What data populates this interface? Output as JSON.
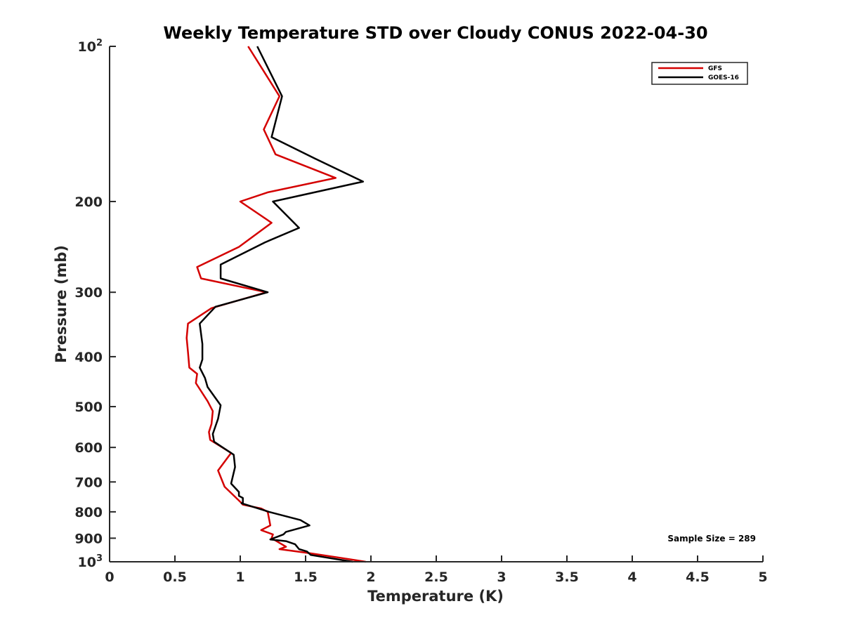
{
  "chart_data": {
    "type": "line",
    "title": "Weekly Temperature STD over Cloudy CONUS 2022-04-30",
    "xlabel": "Temperature (K)",
    "ylabel": "Pressure (mb)",
    "xlim": [
      0,
      5
    ],
    "ylim": [
      100,
      1000
    ],
    "y_scale": "log",
    "y_reversed": true,
    "grid": false,
    "legend_position": "top-right",
    "x_ticks": [
      "0",
      "0.5",
      "1",
      "1.5",
      "2",
      "2.5",
      "3",
      "3.5",
      "4",
      "4.5",
      "5"
    ],
    "y_ticks": [
      {
        "value": 100,
        "label": "10",
        "sup": "2"
      },
      {
        "value": 200,
        "label": "200",
        "sup": ""
      },
      {
        "value": 300,
        "label": "300",
        "sup": ""
      },
      {
        "value": 400,
        "label": "400",
        "sup": ""
      },
      {
        "value": 500,
        "label": "500",
        "sup": ""
      },
      {
        "value": 600,
        "label": "600",
        "sup": ""
      },
      {
        "value": 700,
        "label": "700",
        "sup": ""
      },
      {
        "value": 800,
        "label": "800",
        "sup": ""
      },
      {
        "value": 900,
        "label": "900",
        "sup": ""
      },
      {
        "value": 1000,
        "label": "10",
        "sup": "3"
      }
    ],
    "series": [
      {
        "name": "GFS",
        "color": "#d40000",
        "points": [
          [
            1.06,
            100
          ],
          [
            1.3,
            125
          ],
          [
            1.18,
            145
          ],
          [
            1.27,
            162
          ],
          [
            1.73,
            180
          ],
          [
            1.21,
            192
          ],
          [
            1.0,
            200
          ],
          [
            1.24,
            220
          ],
          [
            0.99,
            245
          ],
          [
            0.67,
            268
          ],
          [
            0.7,
            282
          ],
          [
            1.2,
            300
          ],
          [
            0.78,
            322
          ],
          [
            0.6,
            345
          ],
          [
            0.59,
            368
          ],
          [
            0.6,
            392
          ],
          [
            0.61,
            420
          ],
          [
            0.67,
            432
          ],
          [
            0.66,
            450
          ],
          [
            0.75,
            488
          ],
          [
            0.79,
            510
          ],
          [
            0.78,
            540
          ],
          [
            0.76,
            560
          ],
          [
            0.77,
            580
          ],
          [
            0.93,
            615
          ],
          [
            0.83,
            665
          ],
          [
            0.88,
            715
          ],
          [
            1.0,
            765
          ],
          [
            1.02,
            775
          ],
          [
            1.16,
            788
          ],
          [
            1.21,
            800
          ],
          [
            1.23,
            850
          ],
          [
            1.16,
            868
          ],
          [
            1.25,
            885
          ],
          [
            1.24,
            900
          ],
          [
            1.35,
            935
          ],
          [
            1.3,
            945
          ],
          [
            1.53,
            962
          ],
          [
            1.76,
            982
          ],
          [
            1.96,
            1000
          ]
        ]
      },
      {
        "name": "GOES-16",
        "color": "#000000",
        "points": [
          [
            1.13,
            100
          ],
          [
            1.32,
            125
          ],
          [
            1.24,
            150
          ],
          [
            1.57,
            165
          ],
          [
            1.94,
            183
          ],
          [
            1.25,
            200
          ],
          [
            1.45,
            225
          ],
          [
            1.19,
            240
          ],
          [
            0.85,
            265
          ],
          [
            0.85,
            282
          ],
          [
            1.21,
            300
          ],
          [
            0.81,
            320
          ],
          [
            0.69,
            345
          ],
          [
            0.71,
            378
          ],
          [
            0.71,
            405
          ],
          [
            0.69,
            420
          ],
          [
            0.73,
            440
          ],
          [
            0.75,
            458
          ],
          [
            0.85,
            497
          ],
          [
            0.83,
            528
          ],
          [
            0.79,
            565
          ],
          [
            0.8,
            585
          ],
          [
            0.95,
            620
          ],
          [
            0.96,
            655
          ],
          [
            0.93,
            705
          ],
          [
            0.99,
            732
          ],
          [
            0.99,
            745
          ],
          [
            1.02,
            752
          ],
          [
            1.02,
            768
          ],
          [
            1.01,
            770
          ],
          [
            1.22,
            800
          ],
          [
            1.46,
            830
          ],
          [
            1.53,
            850
          ],
          [
            1.35,
            875
          ],
          [
            1.33,
            885
          ],
          [
            1.23,
            905
          ],
          [
            1.35,
            912
          ],
          [
            1.42,
            925
          ],
          [
            1.45,
            945
          ],
          [
            1.51,
            955
          ],
          [
            1.54,
            970
          ],
          [
            1.86,
            1000
          ]
        ]
      }
    ],
    "annotations": [
      "Sample Size = 289"
    ]
  },
  "colors": {
    "axis": "#262626",
    "background": "#ffffff"
  }
}
